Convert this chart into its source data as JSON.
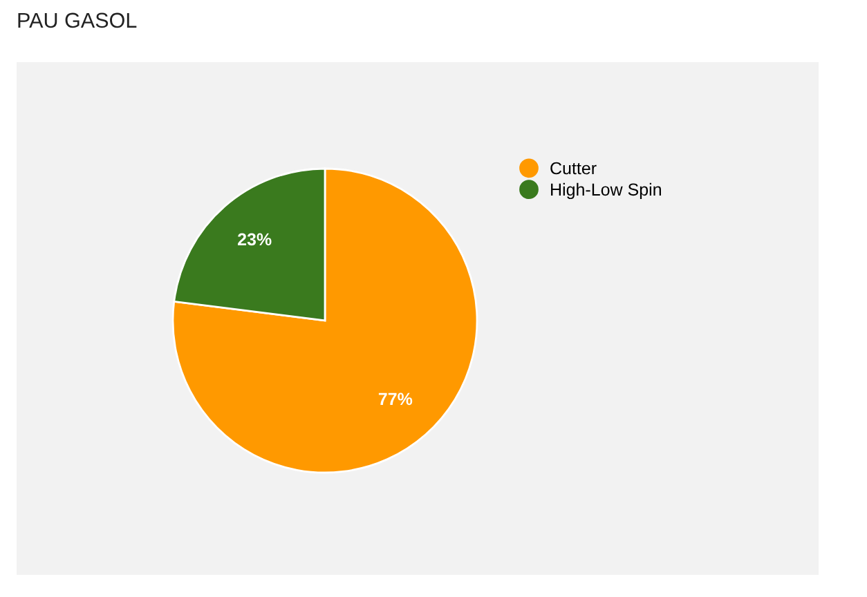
{
  "chart_data": {
    "type": "pie",
    "title": "PAU GASOL",
    "categories": [
      "Cutter",
      "High-Low Spin"
    ],
    "values": [
      77,
      23
    ],
    "colors": [
      "#ff9900",
      "#3a7a1e"
    ],
    "value_labels": [
      "77%",
      "23%"
    ],
    "legend": "top right"
  }
}
